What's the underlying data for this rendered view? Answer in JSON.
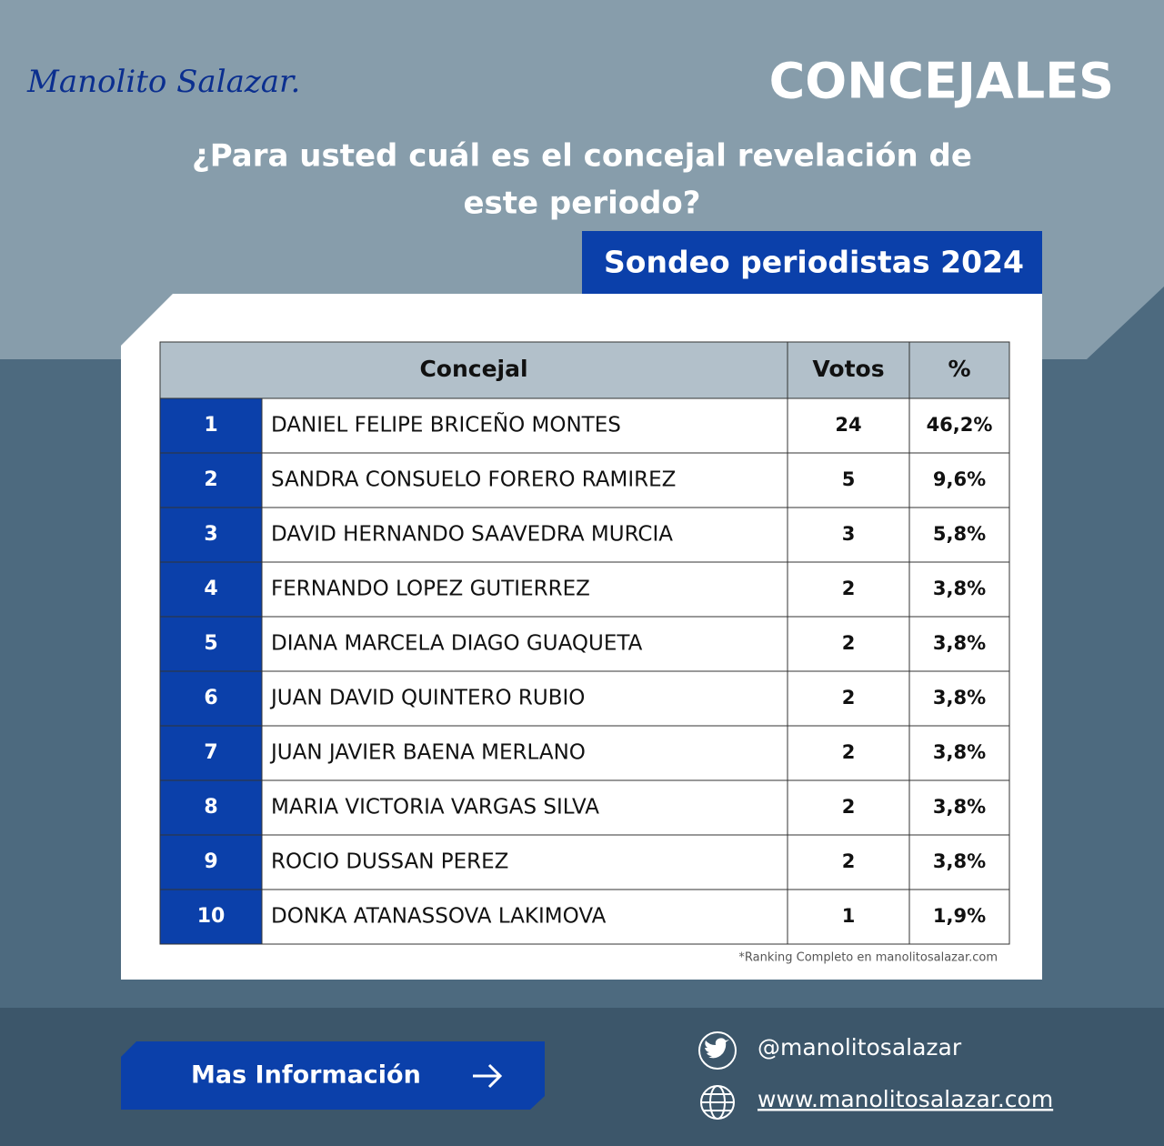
{
  "logo": "Manolito Salazar.",
  "header": {
    "title": "CONCEJALES",
    "question": [
      "¿Para usted cuál es el concejal revelación de",
      "este periodo?"
    ],
    "badge": "Sondeo periodistas 2024"
  },
  "table": {
    "columns": [
      "Concejal",
      "Votos",
      "%"
    ],
    "rows": [
      [
        1,
        "DANIEL FELIPE BRICEÑO MONTES",
        24,
        "46,2%"
      ],
      [
        2,
        "SANDRA CONSUELO FORERO RAMIREZ",
        5,
        "9,6%"
      ],
      [
        3,
        "DAVID HERNANDO SAAVEDRA MURCIA",
        3,
        "5,8%"
      ],
      [
        4,
        "FERNANDO LOPEZ GUTIERREZ",
        2,
        "3,8%"
      ],
      [
        5,
        "DIANA MARCELA DIAGO GUAQUETA",
        2,
        "3,8%"
      ],
      [
        6,
        "JUAN DAVID QUINTERO RUBIO",
        2,
        "3,8%"
      ],
      [
        7,
        "JUAN JAVIER BAENA MERLANO",
        2,
        "3,8%"
      ],
      [
        8,
        "MARIA VICTORIA VARGAS SILVA",
        2,
        "3,8%"
      ],
      [
        9,
        "ROCIO DUSSAN PEREZ",
        2,
        "3,8%"
      ],
      [
        10,
        "DONKA ATANASSOVA LAKIMOVA",
        1,
        "1,9%"
      ]
    ],
    "footnote": "*Ranking Completo en manolitosalazar.com"
  },
  "footer": {
    "button": "Mas Información",
    "twitter": "@manolitosalazar",
    "website": "www.manolitosalazar.com"
  }
}
